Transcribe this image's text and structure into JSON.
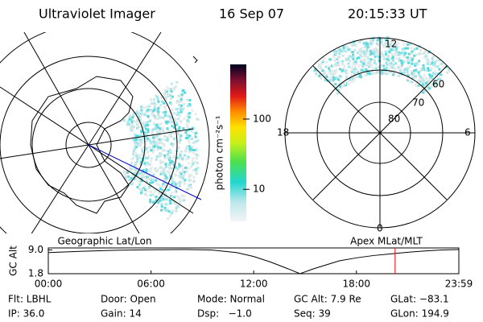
{
  "header": {
    "title": "Ultraviolet Imager",
    "date": "16 Sep 07",
    "time": "20:15:33 UT"
  },
  "left_panel": {
    "label": "Geographic Lat/Lon"
  },
  "right_panel": {
    "label": "Apex MLat/MLT",
    "lat_labels": [
      "80",
      "70",
      "60"
    ],
    "mlt_labels": [
      "12",
      "6",
      "0",
      "18"
    ]
  },
  "colorbar": {
    "label": "photon cm⁻²s⁻¹",
    "log": true,
    "range": [
      3.5,
      600
    ],
    "ticks": [
      10,
      100
    ]
  },
  "chart_data": {
    "type": "line",
    "ylabel": "GC Alt",
    "x": [
      0,
      2,
      4,
      6,
      8,
      9.5,
      11,
      12,
      13,
      14,
      14.7,
      15.5,
      17,
      18,
      19,
      20,
      21,
      22,
      23,
      23.983
    ],
    "series": [
      {
        "color": "#000000",
        "values": [
          8.2,
          8.6,
          8.9,
          9.05,
          9.1,
          9.0,
          8.2,
          7.0,
          5.3,
          3.3,
          1.8,
          3.3,
          5.7,
          6.6,
          7.3,
          7.8,
          8.3,
          8.7,
          9.0,
          9.1
        ]
      }
    ],
    "xlim": [
      0,
      23.983
    ],
    "ylim": [
      1.8,
      9.6
    ],
    "xticks": [
      {
        "value": 0,
        "label": "00:00"
      },
      {
        "value": 6,
        "label": "06:00"
      },
      {
        "value": 12,
        "label": "12:00"
      },
      {
        "value": 18,
        "label": "18:00"
      },
      {
        "value": 23.983,
        "label": "23:59"
      }
    ],
    "yticks": [
      1.8,
      {
        "value": 9,
        "label": "9.0"
      }
    ],
    "marker": {
      "x": 20.259,
      "color": "#ff0000"
    }
  },
  "footer": [
    [
      "Flt: LBHL",
      "Door: Open",
      "Mode: Normal",
      "GC Alt: 7.9 Re",
      "GLat: −83.1"
    ],
    [
      "IP: 36.0",
      "Gain: 14",
      "Dsp:   −1.0",
      "Seq: 39",
      "GLon: 194.9"
    ]
  ]
}
